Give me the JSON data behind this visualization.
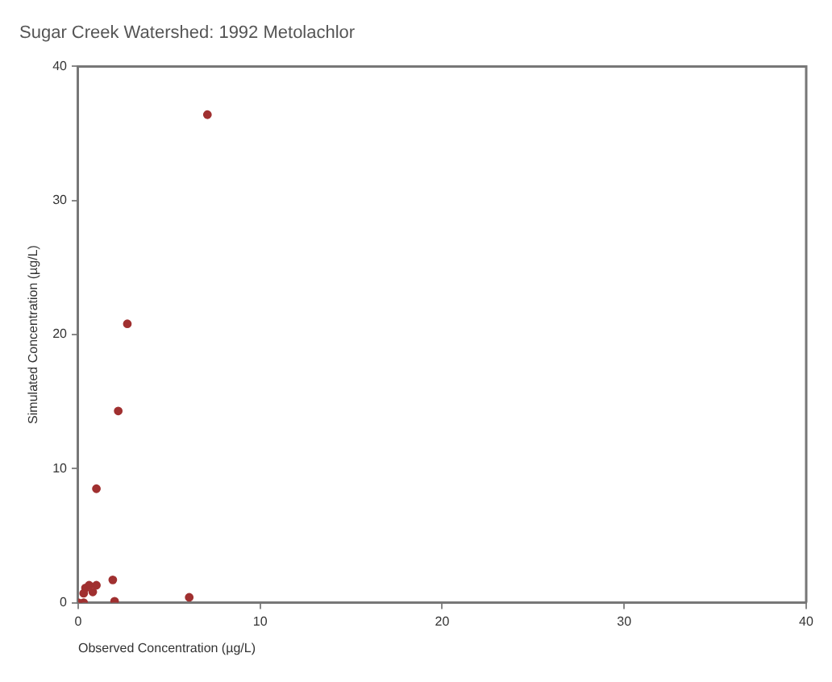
{
  "chart_data": {
    "type": "scatter",
    "title": "Sugar Creek Watershed: 1992 Metolachlor",
    "xlabel": "Observed Concentration (µg/L)",
    "ylabel": "Simulated Concentration (µg/L)",
    "series": [
      {
        "color": "#a03030",
        "x": [
          7.1,
          2.7,
          2.2,
          1.0,
          6.1,
          1.9,
          2.0,
          0.3,
          0.4,
          0.6,
          0,
          0.3,
          0.8,
          1.0
        ],
        "values": [
          36.4,
          20.8,
          14.3,
          8.5,
          0.4,
          1.7,
          0.1,
          0.7,
          1.1,
          1.3,
          0,
          0,
          0.8,
          1.3
        ]
      }
    ],
    "xlim": [
      0,
      40
    ],
    "xticks": [
      0,
      10,
      20,
      30,
      40
    ],
    "ylim": [
      0,
      40
    ],
    "yticks": [
      0,
      10,
      20,
      30,
      40
    ],
    "grid": false,
    "legend": false,
    "marker": "circle"
  }
}
